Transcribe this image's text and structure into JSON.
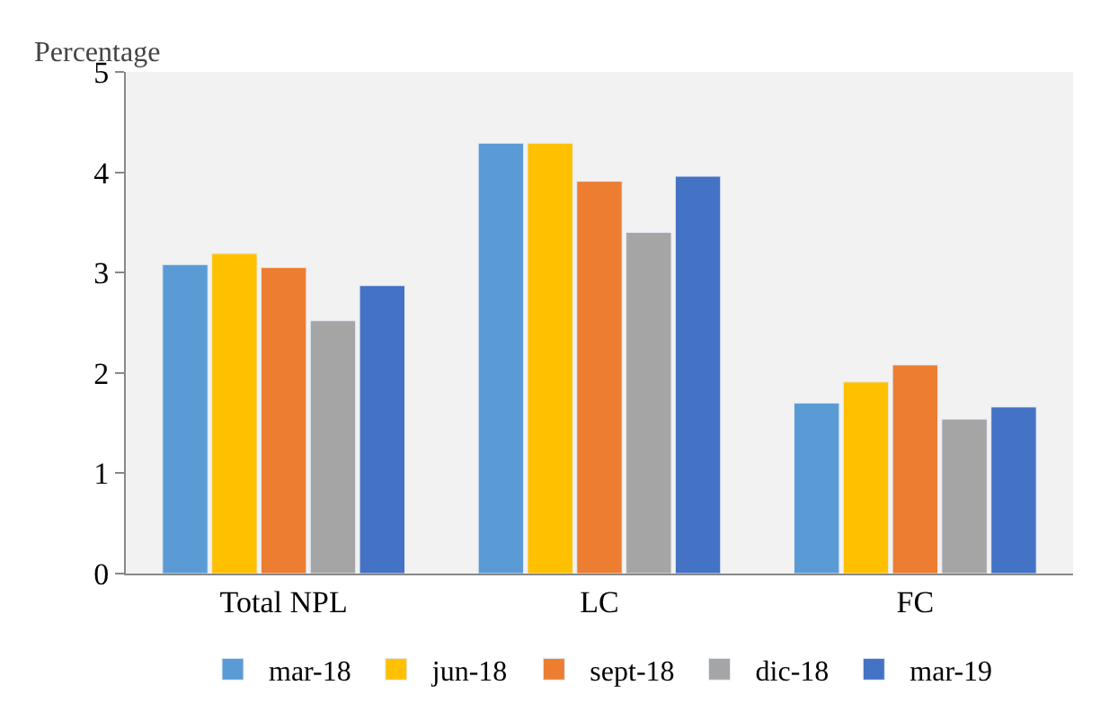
{
  "chart_data": {
    "type": "bar",
    "ylabel": "Percentage",
    "categories": [
      "Total NPL",
      "LC",
      "FC"
    ],
    "series": [
      {
        "name": "mar-18",
        "color": "#5b9bd5",
        "values": [
          3.08,
          4.29,
          1.7
        ]
      },
      {
        "name": "jun-18",
        "color": "#ffc000",
        "values": [
          3.19,
          4.29,
          1.91
        ]
      },
      {
        "name": "sept-18",
        "color": "#ed7d31",
        "values": [
          3.05,
          3.91,
          2.08
        ]
      },
      {
        "name": "dic-18",
        "color": "#a5a5a5",
        "values": [
          2.52,
          3.4,
          1.54
        ]
      },
      {
        "name": "mar-19",
        "color": "#4472c4",
        "values": [
          2.87,
          3.96,
          1.66
        ]
      }
    ],
    "ylim": [
      0,
      5
    ],
    "yticks": [
      0,
      1,
      2,
      3,
      4,
      5
    ],
    "grid": false,
    "legend": "bottom"
  }
}
